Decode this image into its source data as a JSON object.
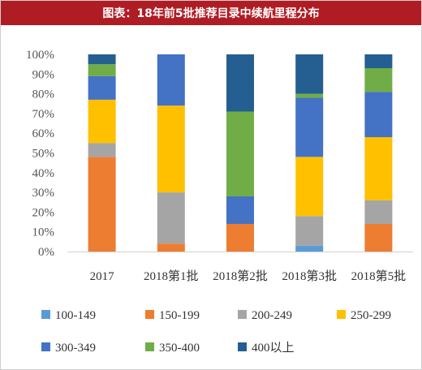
{
  "title": "图表：18年前5批推荐目录中续航里程分布",
  "chart_data": {
    "type": "bar",
    "stacked": true,
    "categories": [
      "2017",
      "2018第1批",
      "2018第2批",
      "2018第3批",
      "2018第5批"
    ],
    "ylim": [
      0,
      100
    ],
    "yticks": [
      "0%",
      "10%",
      "20%",
      "30%",
      "40%",
      "50%",
      "60%",
      "70%",
      "80%",
      "90%",
      "100%"
    ],
    "legend_position": "bottom",
    "grid": false,
    "series": [
      {
        "name": "100-149",
        "color": "#5b9bd5",
        "values": [
          0,
          0,
          0,
          3,
          0
        ]
      },
      {
        "name": "150-199",
        "color": "#ed7d31",
        "values": [
          48,
          4,
          14,
          0,
          14
        ]
      },
      {
        "name": "200-249",
        "color": "#a5a5a5",
        "values": [
          7,
          26,
          0,
          15,
          12
        ]
      },
      {
        "name": "250-299",
        "color": "#ffc000",
        "values": [
          22,
          44,
          0,
          30,
          32
        ]
      },
      {
        "name": "300-349",
        "color": "#4472c4",
        "values": [
          12,
          26,
          14,
          30,
          23
        ]
      },
      {
        "name": "350-400",
        "color": "#70ad47",
        "values": [
          6,
          0,
          43,
          2,
          12
        ]
      },
      {
        "name": "400以上",
        "color": "#255e91",
        "values": [
          5,
          0,
          29,
          20,
          7
        ]
      }
    ]
  }
}
